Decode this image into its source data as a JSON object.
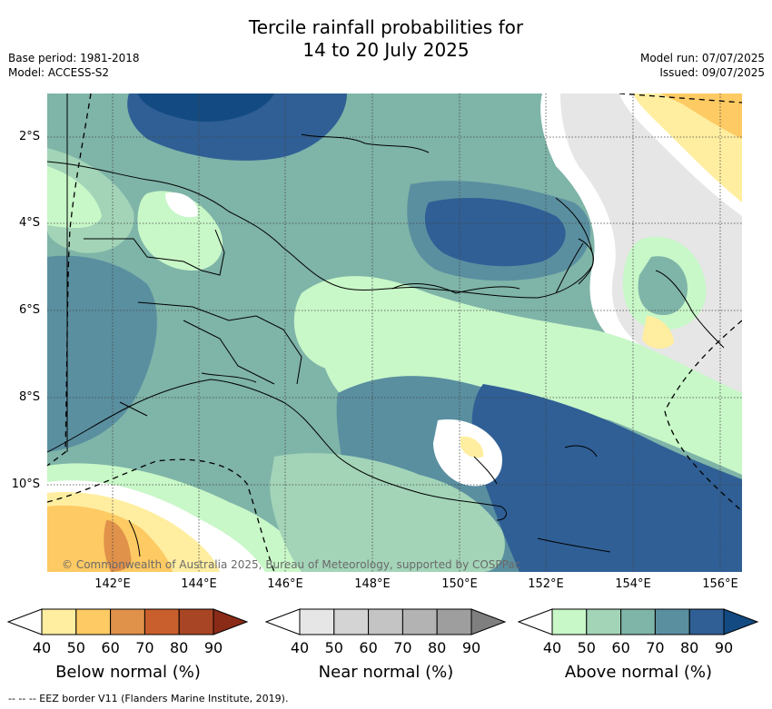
{
  "title_line1": "Tercile rainfall probabilities for",
  "title_line2": "14 to 20 July 2025",
  "base_period": "Base period: 1981-2018",
  "model": "Model: ACCESS-S2",
  "model_run": "Model run: 07/07/2025",
  "issued": "Issued: 09/07/2025",
  "copyright": "© Commonwealth of Australia 2025, Bureau of Meteorology, supported by COSPPac",
  "lat_labels": [
    "2°S",
    "4°S",
    "6°S",
    "8°S",
    "10°S"
  ],
  "lon_labels": [
    "142°E",
    "144°E",
    "146°E",
    "148°E",
    "150°E",
    "152°E",
    "154°E",
    "156°E"
  ],
  "legends": [
    {
      "caption": "Below normal (%)",
      "ticks": [
        "40",
        "50",
        "60",
        "70",
        "80",
        "90"
      ],
      "colors": [
        "#ffeea0",
        "#fdca63",
        "#e0914a",
        "#c95f2c",
        "#a84524",
        "#8a2b18"
      ]
    },
    {
      "caption": "Near normal (%)",
      "ticks": [
        "40",
        "50",
        "60",
        "70",
        "80",
        "90"
      ],
      "colors": [
        "#e6e6e6",
        "#d4d4d4",
        "#c4c4c4",
        "#b3b3b3",
        "#9e9e9e",
        "#7f7f7f"
      ]
    },
    {
      "caption": "Above normal (%)",
      "ticks": [
        "40",
        "50",
        "60",
        "70",
        "80",
        "90"
      ],
      "colors": [
        "#c8f7c8",
        "#a3d4b8",
        "#7fb4a8",
        "#5a8fa0",
        "#2f5f95",
        "#134a82"
      ]
    }
  ],
  "footnote": "--  --  -- EEZ border V11 (Flanders Marine Institute, 2019)."
}
